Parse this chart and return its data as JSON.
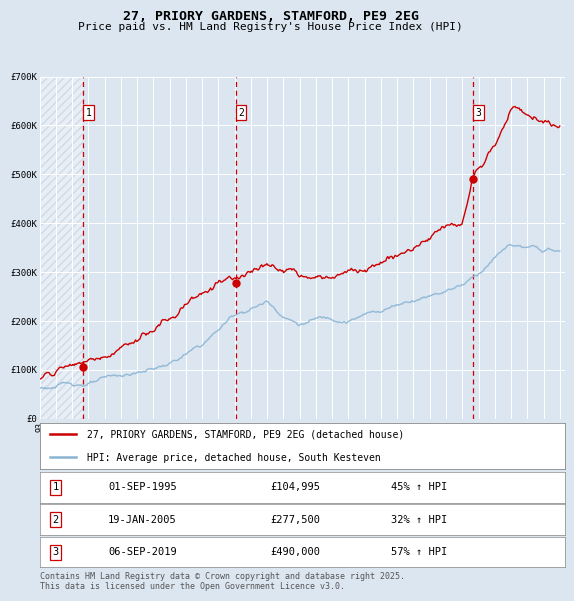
{
  "title": "27, PRIORY GARDENS, STAMFORD, PE9 2EG",
  "subtitle": "Price paid vs. HM Land Registry's House Price Index (HPI)",
  "background_color": "#dce6f1",
  "plot_bg_color": "#dce6f1",
  "grid_color": "#ffffff",
  "red_line_color": "#cc0000",
  "blue_line_color": "#8ab4d4",
  "dashed_line_color": "#cc0000",
  "marker_color": "#cc0000",
  "ylim": [
    0,
    700000
  ],
  "yticks": [
    0,
    100000,
    200000,
    300000,
    400000,
    500000,
    600000,
    700000
  ],
  "ytick_labels": [
    "£0",
    "£100K",
    "£200K",
    "£300K",
    "£400K",
    "£500K",
    "£600K",
    "£700K"
  ],
  "x_start_year": 1993,
  "x_end_year": 2025,
  "sale1_date": 1995.67,
  "sale1_price": 104995,
  "sale1_label": "1",
  "sale2_date": 2005.05,
  "sale2_price": 277500,
  "sale2_label": "2",
  "sale3_date": 2019.67,
  "sale3_price": 490000,
  "sale3_label": "3",
  "legend_line1": "27, PRIORY GARDENS, STAMFORD, PE9 2EG (detached house)",
  "legend_line2": "HPI: Average price, detached house, South Kesteven",
  "table_rows": [
    [
      "1",
      "01-SEP-1995",
      "£104,995",
      "45% ↑ HPI"
    ],
    [
      "2",
      "19-JAN-2005",
      "£277,500",
      "32% ↑ HPI"
    ],
    [
      "3",
      "06-SEP-2019",
      "£490,000",
      "57% ↑ HPI"
    ]
  ],
  "footnote": "Contains HM Land Registry data © Crown copyright and database right 2025.\nThis data is licensed under the Open Government Licence v3.0.",
  "title_fontsize": 9.5,
  "subtitle_fontsize": 8.0,
  "tick_fontsize": 6.5,
  "legend_fontsize": 7.0,
  "table_fontsize": 7.5,
  "footnote_fontsize": 6.0
}
